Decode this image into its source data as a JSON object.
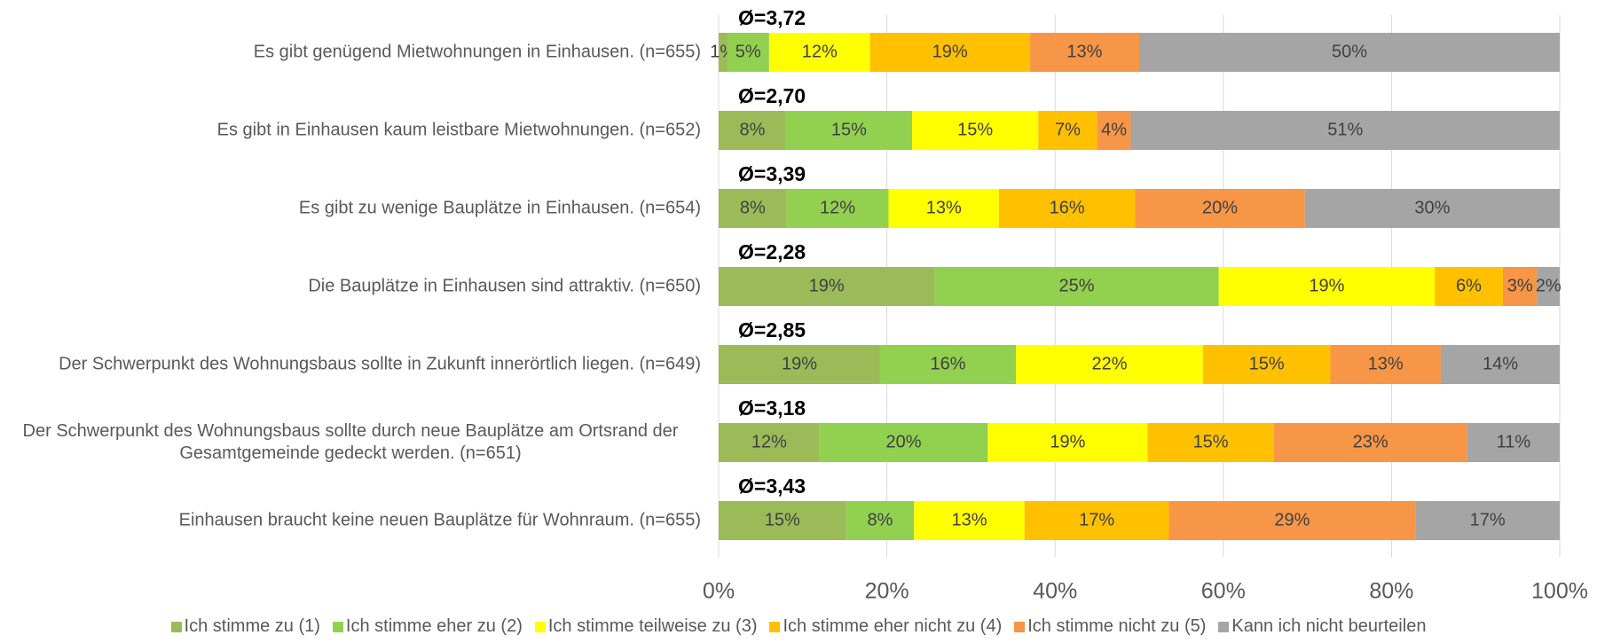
{
  "chart_data": {
    "type": "stacked_bar_100",
    "categories": [
      "Es gibt genügend Mietwohnungen in Einhausen. (n=655)",
      "Es gibt in Einhausen kaum leistbare Mietwohnungen. (n=652)",
      "Es gibt zu wenige Bauplätze in Einhausen. (n=654)",
      "Die Bauplätze in Einhausen sind attraktiv. (n=650)",
      "Der Schwerpunkt des Wohnungsbaus sollte in Zukunft innerörtlich liegen. (n=649)",
      "Der Schwerpunkt des Wohnungsbaus sollte durch neue Bauplätze am Ortsrand der Gesamtgemeinde gedeckt werden. (n=651)",
      "Einhausen braucht keine neuen Bauplätze für Wohnraum. (n=655)"
    ],
    "annotations": [
      "Ø=3,72",
      "Ø=2,70",
      "Ø=3,39",
      "Ø=2,28",
      "Ø=2,85",
      "Ø=3,18",
      "Ø=3,43"
    ],
    "series": [
      {
        "name": "Ich stimme zu (1)",
        "color": "#9bbb59",
        "values": [
          1,
          8,
          8,
          19,
          19,
          12,
          15
        ],
        "value_labels": [
          "1%",
          "8%",
          "8%",
          "19%",
          "19%",
          "12%",
          "15%"
        ]
      },
      {
        "name": "Ich stimme eher zu (2)",
        "color": "#92d050",
        "values": [
          5,
          15,
          12,
          25,
          16,
          20,
          8
        ],
        "value_labels": [
          "5%",
          "15%",
          "12%",
          "25%",
          "16%",
          "20%",
          "8%"
        ]
      },
      {
        "name": "Ich stimme teilweise zu (3)",
        "color": "#ffff00",
        "values": [
          12,
          15,
          13,
          19,
          22,
          19,
          13
        ],
        "value_labels": [
          "12%",
          "15%",
          "13%",
          "19%",
          "22%",
          "19%",
          "13%"
        ]
      },
      {
        "name": "Ich stimme eher nicht zu (4)",
        "color": "#ffc000",
        "values": [
          19,
          7,
          16,
          6,
          15,
          15,
          17
        ],
        "value_labels": [
          "19%",
          "7%",
          "16%",
          "6%",
          "15%",
          "15%",
          "17%"
        ]
      },
      {
        "name": "Ich stimme nicht zu (5)",
        "color": "#f79646",
        "values": [
          13,
          4,
          20,
          3,
          13,
          23,
          29
        ],
        "value_labels": [
          "13%",
          "4%",
          "20%",
          "3%",
          "13%",
          "23%",
          "29%"
        ]
      },
      {
        "name": "Kann ich nicht beurteilen",
        "color": "#a5a5a5",
        "values": [
          50,
          51,
          30,
          2,
          14,
          11,
          17
        ],
        "value_labels": [
          "50%",
          "51%",
          "30%",
          "2%",
          "14%",
          "11%",
          "17%"
        ]
      }
    ],
    "xlim": [
      0,
      100
    ],
    "xticks": [
      {
        "value": 0,
        "label": "0%"
      },
      {
        "value": 20,
        "label": "20%"
      },
      {
        "value": 40,
        "label": "40%"
      },
      {
        "value": 60,
        "label": "60%"
      },
      {
        "value": 80,
        "label": "80%"
      },
      {
        "value": 100,
        "label": "100%"
      }
    ],
    "grid": true
  }
}
